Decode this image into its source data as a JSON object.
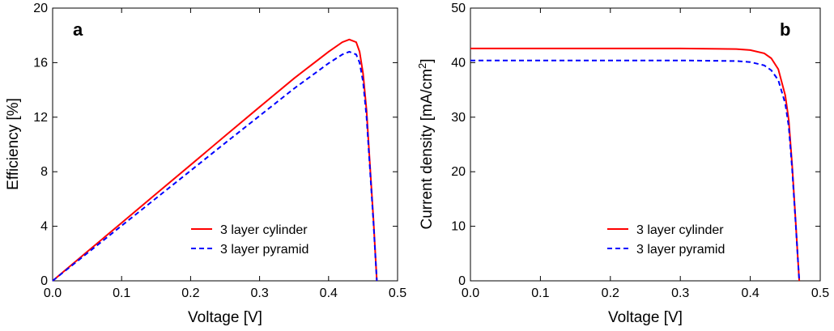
{
  "chart_data": [
    {
      "type": "line",
      "panel_label": "a",
      "xlabel": "Voltage [V]",
      "ylabel": "Efficiency [%]",
      "xlim": [
        0,
        0.5
      ],
      "ylim": [
        0,
        20
      ],
      "xticks": [
        "0.0",
        "0.1",
        "0.2",
        "0.3",
        "0.4",
        "0.5"
      ],
      "yticks": [
        "0",
        "4",
        "8",
        "12",
        "16",
        "20"
      ],
      "grid": false,
      "legend_position": "lower-right",
      "series": [
        {
          "name": "3 layer cylinder",
          "color": "#ff0000",
          "style": "solid",
          "x": [
            0,
            0.05,
            0.1,
            0.15,
            0.2,
            0.25,
            0.3,
            0.35,
            0.4,
            0.42,
            0.43,
            0.44,
            0.445,
            0.45,
            0.455,
            0.46,
            0.465,
            0.468,
            0.47
          ],
          "y": [
            0,
            2.13,
            4.25,
            6.38,
            8.5,
            10.63,
            12.75,
            14.85,
            16.8,
            17.5,
            17.7,
            17.5,
            16.8,
            15.2,
            12.5,
            8.5,
            4.5,
            1.8,
            0
          ]
        },
        {
          "name": "3 layer pyramid",
          "color": "#0000ff",
          "style": "dashed",
          "x": [
            0,
            0.05,
            0.1,
            0.15,
            0.2,
            0.25,
            0.3,
            0.35,
            0.4,
            0.42,
            0.43,
            0.44,
            0.445,
            0.45,
            0.455,
            0.46,
            0.465,
            0.468,
            0.47
          ],
          "y": [
            0,
            2.02,
            4.04,
            6.06,
            8.08,
            10.1,
            12.1,
            14.1,
            15.95,
            16.6,
            16.8,
            16.6,
            16.0,
            14.6,
            12.0,
            8.2,
            4.3,
            1.7,
            0
          ]
        }
      ]
    },
    {
      "type": "line",
      "panel_label": "b",
      "xlabel": "Voltage [V]",
      "ylabel": "Current density [mA/cm",
      "ylabel_sup": "2",
      "ylabel_end": "]",
      "xlim": [
        0,
        0.5
      ],
      "ylim": [
        0,
        50
      ],
      "xticks": [
        "0.0",
        "0.1",
        "0.2",
        "0.3",
        "0.4",
        "0.5"
      ],
      "yticks": [
        "0",
        "10",
        "20",
        "30",
        "40",
        "50"
      ],
      "grid": false,
      "legend_position": "lower-right",
      "series": [
        {
          "name": "3 layer cylinder",
          "color": "#ff0000",
          "style": "solid",
          "x": [
            0,
            0.1,
            0.2,
            0.3,
            0.38,
            0.4,
            0.42,
            0.43,
            0.44,
            0.45,
            0.455,
            0.46,
            0.465,
            0.468,
            0.47
          ],
          "y": [
            42.6,
            42.6,
            42.6,
            42.6,
            42.5,
            42.3,
            41.7,
            40.8,
            38.8,
            34.0,
            29.5,
            21.0,
            10.5,
            4.0,
            0
          ]
        },
        {
          "name": "3 layer pyramid",
          "color": "#0000ff",
          "style": "dashed",
          "x": [
            0,
            0.1,
            0.2,
            0.3,
            0.38,
            0.4,
            0.42,
            0.43,
            0.44,
            0.45,
            0.455,
            0.46,
            0.465,
            0.468,
            0.47
          ],
          "y": [
            40.4,
            40.4,
            40.4,
            40.4,
            40.3,
            40.1,
            39.5,
            38.6,
            36.8,
            32.5,
            28.3,
            20.3,
            10.2,
            3.9,
            0
          ]
        }
      ]
    }
  ]
}
